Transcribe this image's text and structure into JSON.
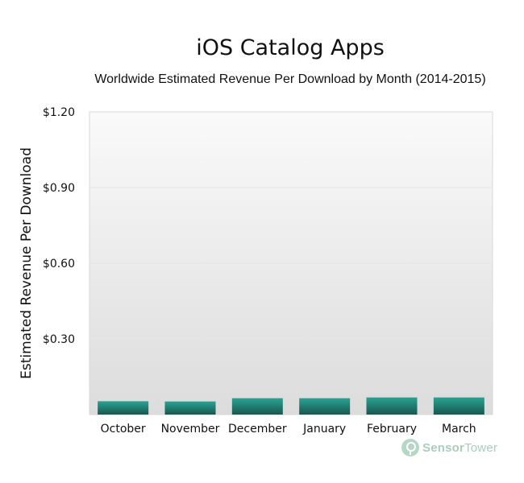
{
  "chart_data": {
    "type": "bar",
    "title": "iOS Catalog Apps",
    "subtitle": "Worldwide Estimated Revenue Per Download by Month (2014-2015)",
    "ylabel": "Estimated Revenue Per Download",
    "xlabel": "",
    "categories": [
      "October",
      "November",
      "December",
      "January",
      "February",
      "March"
    ],
    "values": [
      0.053,
      0.052,
      0.065,
      0.065,
      0.068,
      0.068
    ],
    "ylim": [
      0,
      1.2
    ],
    "yticks": [
      0.3,
      0.6,
      0.9,
      1.2
    ],
    "ytick_labels": [
      "$0.30",
      "$0.60",
      "$0.90",
      "$1.20"
    ],
    "grid": true,
    "legend": "none"
  },
  "colors": {
    "bar_top": "#2aa393",
    "bar_bottom": "#17574f",
    "plot_bg_top": "#fafafa",
    "plot_bg_bottom": "#dcdcdc",
    "grid": "#e6e6e6"
  },
  "brand": {
    "icon": "sensortower-logo-icon",
    "part1": "Sensor",
    "part2": "Tower"
  }
}
